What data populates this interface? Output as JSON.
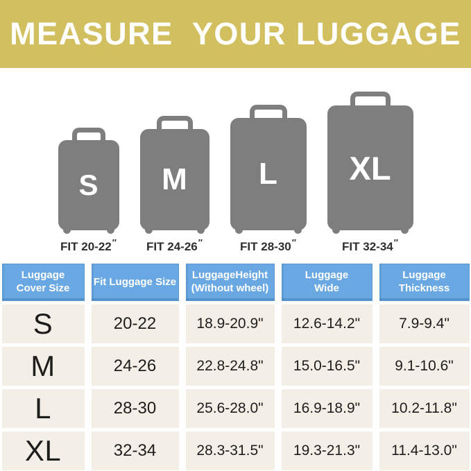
{
  "banner": {
    "title": "MEASURE  YOUR LUGGAGE"
  },
  "sizes": [
    {
      "letter": "S",
      "fit": "FIT 20-22",
      "unit": "″"
    },
    {
      "letter": "M",
      "fit": "FIT 24-26",
      "unit": "″"
    },
    {
      "letter": "L",
      "fit": "FIT 28-30",
      "unit": "″"
    },
    {
      "letter": "XL",
      "fit": "FIT 32-34",
      "unit": "″"
    }
  ],
  "table": {
    "headers": [
      "Luggage\nCover Size",
      "Fit Luggage Size",
      "LuggageHeight\n(Without wheel)",
      "Luggage\nWide",
      "Luggage\nThickness"
    ],
    "rows": [
      [
        "S",
        "20-22",
        "18.9-20.9\"",
        "12.6-14.2\"",
        "7.9-9.4\""
      ],
      [
        "M",
        "24-26",
        "22.8-24.8\"",
        "15.0-16.5\"",
        "9.1-10.6\""
      ],
      [
        "L",
        "28-30",
        "25.6-28.0\"",
        "16.9-18.9\"",
        "10.2-11.8\""
      ],
      [
        "XL",
        "32-34",
        "28.3-31.5\"",
        "19.3-21.3\"",
        "11.4-13.0\""
      ]
    ]
  },
  "chart_data": {
    "type": "table",
    "title": "MEASURE  YOUR LUGGAGE",
    "columns": [
      "Luggage Cover Size",
      "Fit Luggage Size",
      "LuggageHeight (Without wheel)",
      "Luggage Wide",
      "Luggage Thickness"
    ],
    "rows": [
      [
        "S",
        "20-22",
        "18.9-20.9\"",
        "12.6-14.2\"",
        "7.9-9.4\""
      ],
      [
        "M",
        "24-26",
        "22.8-24.8\"",
        "15.0-16.5\"",
        "9.1-10.6\""
      ],
      [
        "L",
        "28-30",
        "25.6-28.0\"",
        "16.9-18.9\"",
        "10.2-11.8\""
      ],
      [
        "XL",
        "32-34",
        "28.3-31.5\"",
        "19.3-21.3\"",
        "11.4-13.0\""
      ]
    ]
  },
  "colors": {
    "banner_bg": "#d2bf5f",
    "header_blue": "#69a8e3",
    "row_cream": "#f4efe6",
    "suitcase_gray": "#7e7e7e",
    "text_dark": "#1d1d1d"
  }
}
